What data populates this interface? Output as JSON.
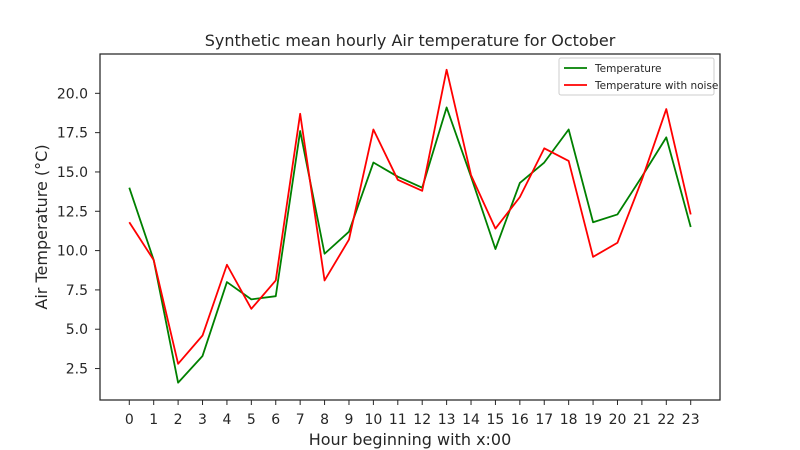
{
  "chart_data": {
    "type": "line",
    "title": "Synthetic mean hourly Air temperature for October",
    "xlabel": "Hour beginning with x:00",
    "ylabel": "Air Temperature (°C)",
    "x": [
      0,
      1,
      2,
      3,
      4,
      5,
      6,
      7,
      8,
      9,
      10,
      11,
      12,
      13,
      14,
      15,
      16,
      17,
      18,
      19,
      20,
      21,
      22,
      23
    ],
    "xticks": [
      "0",
      "1",
      "2",
      "3",
      "4",
      "5",
      "6",
      "7",
      "8",
      "9",
      "10",
      "11",
      "12",
      "13",
      "14",
      "15",
      "16",
      "17",
      "18",
      "19",
      "20",
      "21",
      "22",
      "23"
    ],
    "yticks": [
      2.5,
      5.0,
      7.5,
      10.0,
      12.5,
      15.0,
      17.5,
      20.0
    ],
    "ytick_labels": [
      "2.5",
      "5.0",
      "7.5",
      "10.0",
      "12.5",
      "15.0",
      "17.5",
      "20.0"
    ],
    "xlim": [
      -1.2,
      24.2
    ],
    "ylim": [
      0.5,
      22.5
    ],
    "grid": false,
    "legend_position": "top-right",
    "series": [
      {
        "name": "Temperature",
        "color": "#008000",
        "values": [
          14.0,
          9.4,
          1.6,
          3.3,
          8.0,
          6.9,
          7.1,
          17.6,
          9.8,
          11.2,
          15.6,
          14.7,
          14.0,
          19.1,
          14.7,
          10.1,
          14.3,
          15.6,
          17.7,
          11.8,
          12.3,
          14.7,
          17.2,
          11.5
        ]
      },
      {
        "name": "Temperature with noise",
        "color": "#ff0000",
        "values": [
          11.8,
          9.4,
          2.8,
          4.6,
          9.1,
          6.3,
          8.1,
          18.7,
          8.1,
          10.7,
          17.7,
          14.5,
          13.8,
          21.5,
          14.8,
          11.4,
          13.4,
          16.5,
          15.7,
          9.6,
          10.5,
          14.5,
          19.0,
          12.3
        ]
      }
    ]
  }
}
